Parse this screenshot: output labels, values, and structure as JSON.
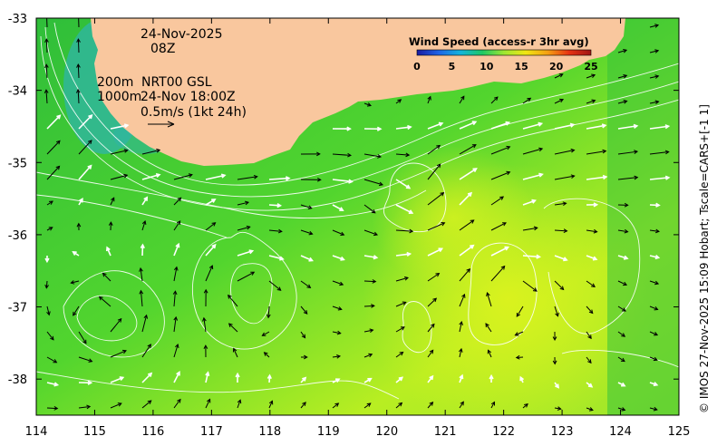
{
  "map": {
    "date": "24-Nov-2025",
    "time": "08Z",
    "contour_labels": [
      "200m",
      "1000m"
    ],
    "product": "NRT00 GSL",
    "product_time": "24-Nov 18:00Z",
    "vector_scale": "0.5m/s (1kt 24h)",
    "side_credit": "© IMOS 27-Nov-2025 15:09 Hobart; Tscale=CARS+[-1 1]",
    "lon_ticks": [
      "114",
      "115",
      "116",
      "117",
      "118",
      "119",
      "120",
      "121",
      "122",
      "123",
      "124",
      "125"
    ],
    "lat_ticks": [
      "-33",
      "-34",
      "-35",
      "-36",
      "-37",
      "-38"
    ],
    "lon_range": [
      114,
      125
    ],
    "lat_range": [
      -38.5,
      -33
    ],
    "land_color": "#f9c79e",
    "sea_color": "#3cc83c",
    "legend": {
      "title": "Wind Speed (access-r 3hr avg)",
      "ticks": [
        "0",
        "5",
        "10",
        "15",
        "20",
        "25"
      ],
      "colors": [
        "#1a1aa0",
        "#1e64e6",
        "#14b4dc",
        "#1ec864",
        "#9ee632",
        "#f0e614",
        "#f5a014",
        "#e63214",
        "#a01414"
      ]
    }
  }
}
